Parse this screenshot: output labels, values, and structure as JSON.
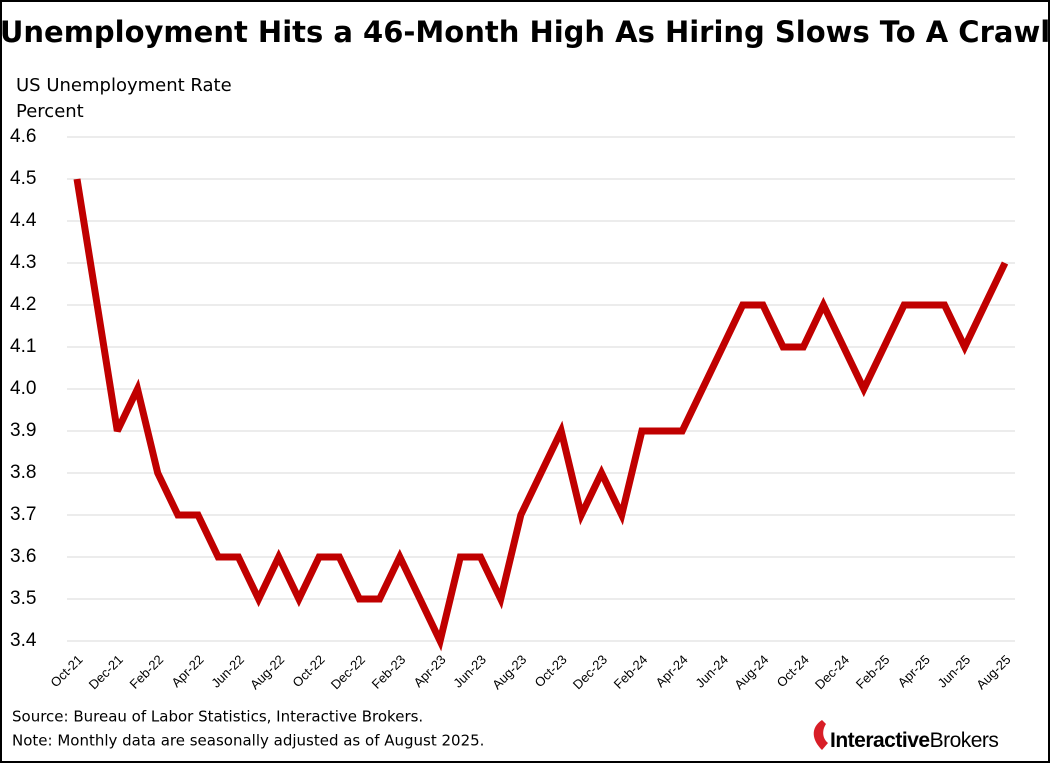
{
  "chart_data": {
    "type": "line",
    "title": "Unemployment Hits a 46-Month High As Hiring Slows To A Crawl",
    "ylabel": "US Unemployment Rate",
    "units": "Percent",
    "source": "Source: Bureau of Labor Statistics, Interactive Brokers.",
    "note": "Note: Monthly data are seasonally adjusted as of August 2025.",
    "logo": [
      "Interactive",
      "Brokers"
    ],
    "categories": [
      "Oct-21",
      null,
      "Dec-21",
      null,
      "Feb-22",
      null,
      "Apr-22",
      null,
      "Jun-22",
      null,
      "Aug-22",
      null,
      "Oct-22",
      null,
      "Dec-22",
      null,
      "Feb-23",
      null,
      "Apr-23",
      null,
      "Jun-23",
      null,
      "Aug-23",
      null,
      "Oct-23",
      null,
      "Dec-23",
      null,
      "Feb-24",
      null,
      "Apr-24",
      null,
      "Jun-24",
      null,
      "Aug-24",
      null,
      "Oct-24",
      null,
      "Dec-24",
      null,
      "Feb-25",
      null,
      "Apr-25",
      null,
      "Jun-25",
      null,
      "Aug-25"
    ],
    "series": [
      {
        "name": "US Unemployment Rate",
        "color": "#c00000",
        "values": [
          4.5,
          4.2,
          3.9,
          4.0,
          3.8,
          3.7,
          3.7,
          3.6,
          3.6,
          3.5,
          3.6,
          3.5,
          3.6,
          3.6,
          3.5,
          3.5,
          3.6,
          3.5,
          3.4,
          3.6,
          3.6,
          3.5,
          3.7,
          3.8,
          3.9,
          3.7,
          3.8,
          3.7,
          3.9,
          3.9,
          3.9,
          4.0,
          4.1,
          4.2,
          4.2,
          4.1,
          4.1,
          4.2,
          4.1,
          4.0,
          4.1,
          4.2,
          4.2,
          4.2,
          4.1,
          4.2,
          4.3
        ]
      }
    ],
    "ylim": [
      3.4,
      4.6
    ],
    "yticks": [
      3.4,
      3.5,
      3.6,
      3.7,
      3.8,
      3.9,
      {
        "value": 4,
        "label": "4.0"
      },
      4.1,
      4.2,
      4.3,
      4.4,
      4.5,
      4.6
    ],
    "grid": true
  }
}
